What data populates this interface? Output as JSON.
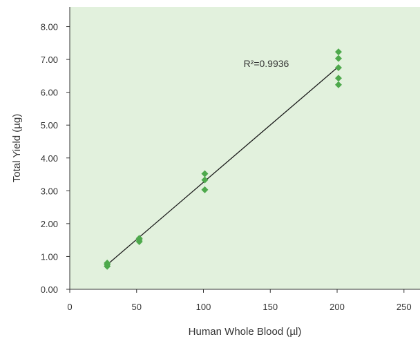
{
  "chart_data": {
    "type": "scatter",
    "xlabel": "Human Whole Blood (µl)",
    "ylabel": "Total Yield (µg)",
    "xlim": [
      0,
      262
    ],
    "ylim": [
      0,
      8.6
    ],
    "xticks": [
      0,
      50,
      100,
      150,
      200,
      250
    ],
    "yticks": [
      0,
      1,
      2,
      3,
      4,
      5,
      6,
      7,
      8
    ],
    "x_tick_labels": [
      "0",
      "50",
      "100",
      "150",
      "200",
      "250"
    ],
    "y_tick_labels": [
      "0.00",
      "1.00",
      "2.00",
      "3.00",
      "4.00",
      "5.00",
      "6.00",
      "7.00",
      "8.00"
    ],
    "grid": false,
    "points": [
      {
        "x": 28,
        "y": 0.7
      },
      {
        "x": 28,
        "y": 0.75
      },
      {
        "x": 28,
        "y": 0.8
      },
      {
        "x": 52,
        "y": 1.45
      },
      {
        "x": 52,
        "y": 1.5
      },
      {
        "x": 52,
        "y": 1.55
      },
      {
        "x": 101,
        "y": 3.03
      },
      {
        "x": 101,
        "y": 3.33
      },
      {
        "x": 101,
        "y": 3.52
      },
      {
        "x": 201,
        "y": 6.23
      },
      {
        "x": 201,
        "y": 6.43
      },
      {
        "x": 201,
        "y": 6.75
      },
      {
        "x": 201,
        "y": 7.03
      },
      {
        "x": 201,
        "y": 7.23
      }
    ],
    "trendline": {
      "x": [
        28,
        201
      ],
      "y": [
        0.75,
        6.78
      ]
    },
    "annotation": {
      "text": "R²=0.9936",
      "x": 130,
      "y": 6.88
    },
    "colors": {
      "plot_background": "#e2f1dd",
      "marker": "#4ea94c",
      "trendline": "#1a1a1a",
      "axis": "#333333"
    }
  }
}
